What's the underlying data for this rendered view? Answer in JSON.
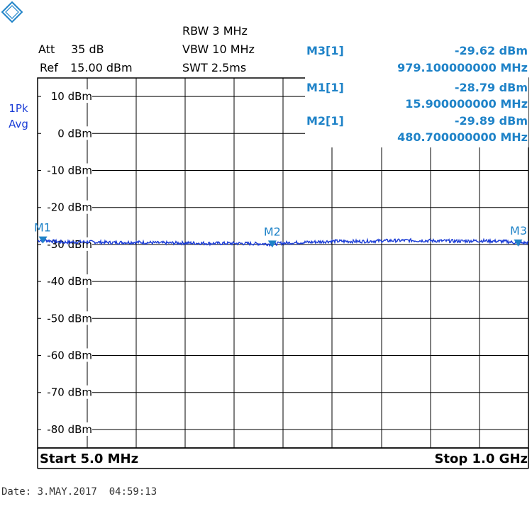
{
  "header": {
    "att_label": "Att",
    "att_value": "35 dB",
    "ref_label": "Ref",
    "ref_value": "15.00 dBm",
    "rbw": "RBW 3 MHz",
    "vbw": "VBW 10 MHz",
    "swt": "SWT 2.5ms"
  },
  "trace_info": {
    "detector": "1Pk",
    "mode": "Avg"
  },
  "markers": [
    {
      "label": "M3[1]",
      "level": "-29.62 dBm",
      "freq": "979.100000000 MHz"
    },
    {
      "label": "M1[1]",
      "level": "-28.79 dBm",
      "freq": "15.900000000 MHz"
    },
    {
      "label": "M2[1]",
      "level": "-29.89 dBm",
      "freq": "480.700000000 MHz"
    }
  ],
  "footer": {
    "start": "Start 5.0 MHz",
    "stop": "Stop 1.0 GHz"
  },
  "date_line": "Date: 3.MAY.2017  04:59:13",
  "colors": {
    "trace": "#1a3cd6",
    "marker": "#1f83c8",
    "grid": "#000000"
  },
  "chart_data": {
    "type": "line",
    "ylabel_unit": "dBm",
    "ylim": [
      -85,
      15
    ],
    "xlim_mhz": [
      5.0,
      1000.0
    ],
    "y_ticks": [
      10,
      0,
      -10,
      -20,
      -30,
      -40,
      -50,
      -60,
      -70,
      -80
    ],
    "y_tick_labels": [
      "10 dBm",
      "0 dBm",
      "-10 dBm",
      "-20 dBm",
      "-30 dBm",
      "-40 dBm",
      "-50 dBm",
      "-60 dBm",
      "-70 dBm",
      "-80 dBm"
    ],
    "grid": true,
    "series": [
      {
        "x_mhz": [
          5,
          15.9,
          55,
          105,
          155,
          205,
          255,
          305,
          355,
          405,
          455,
          480.7,
          505,
          555,
          605,
          655,
          705,
          755,
          805,
          855,
          905,
          955,
          979.1,
          1000
        ],
        "y_dbm": [
          -29.0,
          -28.79,
          -29.4,
          -29.3,
          -29.5,
          -29.4,
          -29.6,
          -29.6,
          -29.7,
          -29.7,
          -29.8,
          -29.89,
          -29.6,
          -29.4,
          -29.1,
          -29.2,
          -29.0,
          -28.9,
          -29.0,
          -29.1,
          -29.0,
          -29.2,
          -29.62,
          -29.5
        ]
      }
    ],
    "marker_points": [
      {
        "name": "M1",
        "x_mhz": 15.9,
        "y_dbm": -28.79
      },
      {
        "name": "M2",
        "x_mhz": 480.7,
        "y_dbm": -29.89
      },
      {
        "name": "M3",
        "x_mhz": 979.1,
        "y_dbm": -29.62
      }
    ]
  }
}
